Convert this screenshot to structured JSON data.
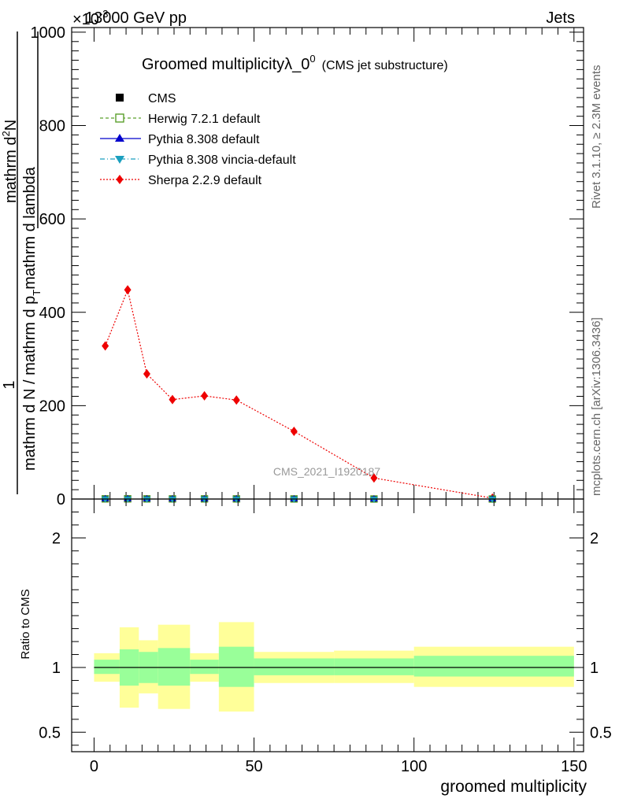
{
  "header": {
    "energy_label": "13000 GeV pp",
    "process_label": "Jets",
    "exponent_label": "×10",
    "exponent_power": "-3"
  },
  "side_labels": {
    "rivet": "Rivet 3.1.10, ≥ 2.3M events",
    "mcplots": "mcplots.cern.ch [arXiv:1306.3436]"
  },
  "chart_data": [
    {
      "id": "main",
      "type": "line",
      "title": "Groomed multiplicityλ_0",
      "title_sup": "0",
      "subtitle": "(CMS jet substructure)",
      "watermark": "CMS_2021_I1920187",
      "ylabel_num": "1",
      "ylabel_frac_top": "mathrm d N / mathrm d p",
      "ylabel_frac_top_sub": "T",
      "ylabel_frac_top_tail": "mathrm d lambda",
      "ylabel_frac_bottom": "mathrm d",
      "ylabel_frac_bottom_sup": "2",
      "ylabel_frac_bottom_tail": "N",
      "ylabel_denom": "mathrm d N / mathrm d p",
      "ylabel_denom_sub": "T",
      "ylabel_denom_tail": "mathrm d lambda",
      "xlim": [
        -7,
        153
      ],
      "ylim": [
        0,
        1010
      ],
      "yticks": [
        0,
        200,
        400,
        600,
        800,
        1000
      ],
      "yticklabels": [
        "0",
        "200",
        "400",
        "600",
        "800",
        "1000"
      ],
      "legend": [
        {
          "name": "CMS",
          "color": "#000000",
          "marker": "square",
          "dash": "none"
        },
        {
          "name": "Herwig 7.2.1 default",
          "color": "#5aa02c",
          "marker": "open-square",
          "dash": "4,3"
        },
        {
          "name": "Pythia 8.308 default",
          "color": "#0000cc",
          "marker": "triangle-up",
          "dash": "none"
        },
        {
          "name": "Pythia 8.308 vincia-default",
          "color": "#1a9fbf",
          "marker": "triangle-down",
          "dash": "6,3,1,3"
        },
        {
          "name": "Sherpa 2.2.9 default",
          "color": "#ee0000",
          "marker": "diamond",
          "dash": "2,2"
        }
      ],
      "series": [
        {
          "name": "Sherpa 2.2.9 default",
          "x": [
            3.5,
            10.5,
            16.5,
            24.5,
            34.5,
            44.5,
            62.5,
            87.5,
            124.5
          ],
          "values": [
            328,
            448,
            268,
            213,
            221,
            212,
            145,
            45,
            2
          ]
        },
        {
          "name": "CMS",
          "x": [
            3.5,
            10.5,
            16.5,
            24.5,
            34.5,
            44.5,
            62.5,
            87.5,
            124.5
          ],
          "values": [
            0.33,
            0.45,
            0.27,
            0.21,
            0.22,
            0.21,
            0.15,
            0.05,
            0.002
          ]
        }
      ]
    },
    {
      "id": "ratio",
      "type": "area",
      "ylabel": "Ratio to CMS",
      "xlabel": "groomed multiplicity",
      "xlim": [
        -7,
        153
      ],
      "ylim": [
        0.35,
        2.3
      ],
      "xticks": [
        0,
        50,
        100,
        150
      ],
      "xticklabels": [
        "0",
        "50",
        "100",
        "150"
      ],
      "yticks": [
        0.5,
        1,
        2
      ],
      "yticklabels": [
        "0.5",
        "1",
        "2"
      ],
      "bins": [
        {
          "lo": 0,
          "hi": 8,
          "inner": [
            0.95,
            1.06
          ],
          "outer": [
            0.89,
            1.11
          ]
        },
        {
          "lo": 8,
          "hi": 14,
          "inner": [
            0.86,
            1.14
          ],
          "outer": [
            0.69,
            1.31
          ]
        },
        {
          "lo": 14,
          "hi": 20,
          "inner": [
            0.88,
            1.12
          ],
          "outer": [
            0.8,
            1.21
          ]
        },
        {
          "lo": 20,
          "hi": 30,
          "inner": [
            0.86,
            1.15
          ],
          "outer": [
            0.68,
            1.33
          ]
        },
        {
          "lo": 30,
          "hi": 39,
          "inner": [
            0.95,
            1.06
          ],
          "outer": [
            0.89,
            1.11
          ]
        },
        {
          "lo": 39,
          "hi": 50,
          "inner": [
            0.85,
            1.16
          ],
          "outer": [
            0.66,
            1.35
          ]
        },
        {
          "lo": 50,
          "hi": 75,
          "inner": [
            0.94,
            1.07
          ],
          "outer": [
            0.88,
            1.12
          ]
        },
        {
          "lo": 75,
          "hi": 100,
          "inner": [
            0.94,
            1.07
          ],
          "outer": [
            0.88,
            1.13
          ]
        },
        {
          "lo": 100,
          "hi": 150,
          "inner": [
            0.93,
            1.09
          ],
          "outer": [
            0.85,
            1.16
          ]
        }
      ],
      "reference": 1
    }
  ]
}
